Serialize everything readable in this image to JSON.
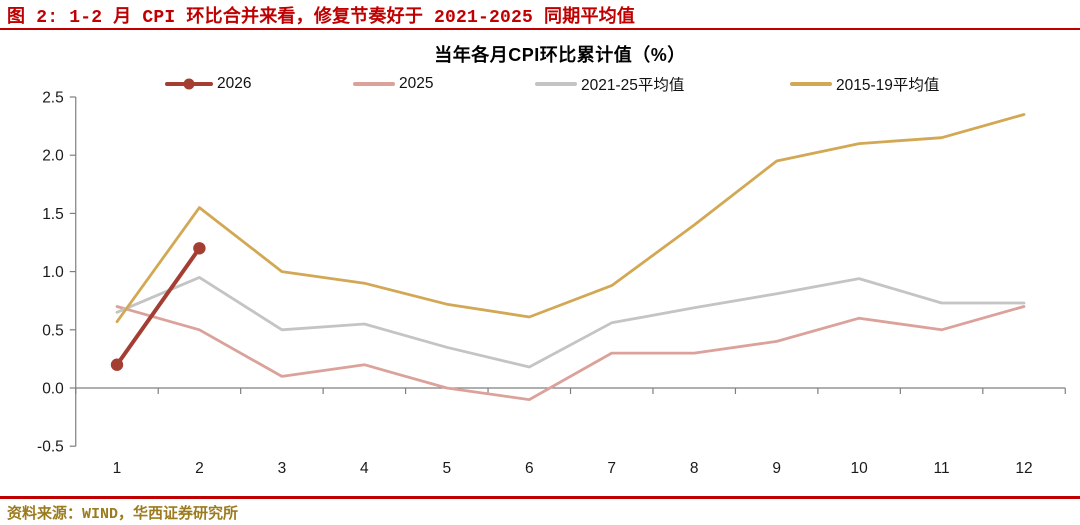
{
  "figure": {
    "title": "图 2: 1-2 月 CPI 环比合并来看，修复节奏好于 2021-2025 同期平均值",
    "accent_color": "#C00000"
  },
  "footer": {
    "source": "资料来源：WIND，华西证券研究所",
    "text_color": "#9C7B1E"
  },
  "chart_data": {
    "type": "line",
    "title": "当年各月CPI环比累计值（%）",
    "xlabel": "",
    "ylabel": "",
    "x": [
      1,
      2,
      3,
      4,
      5,
      6,
      7,
      8,
      9,
      10,
      11,
      12
    ],
    "ylim": [
      -0.5,
      2.5
    ],
    "ytick_step": 0.5,
    "y_tick_labels": [
      "2.5",
      "2.0",
      "1.5",
      "1.0",
      "0.5",
      "0.0",
      "-0.5"
    ],
    "grid": false,
    "legend_position": "top",
    "axis_color": "#7F7F7F",
    "tick_label_color": "#1a1a1a",
    "series": [
      {
        "name": "2026",
        "color": "#A43E32",
        "marker": true,
        "values": [
          0.2,
          1.2,
          null,
          null,
          null,
          null,
          null,
          null,
          null,
          null,
          null,
          null
        ]
      },
      {
        "name": "2025",
        "color": "#DBA29B",
        "marker": false,
        "values": [
          0.7,
          0.5,
          0.1,
          0.2,
          0.0,
          -0.1,
          0.3,
          0.3,
          0.4,
          0.6,
          0.5,
          0.7
        ]
      },
      {
        "name": "2021-25平均值",
        "color": "#C4C4C4",
        "marker": false,
        "values": [
          0.65,
          0.95,
          0.5,
          0.55,
          0.35,
          0.18,
          0.56,
          0.69,
          0.81,
          0.94,
          0.73,
          0.73
        ]
      },
      {
        "name": "2015-19平均值",
        "color": "#D2A855",
        "marker": false,
        "values": [
          0.57,
          1.55,
          1.0,
          0.9,
          0.72,
          0.61,
          0.88,
          1.4,
          1.95,
          2.1,
          2.15,
          2.35
        ]
      }
    ]
  }
}
